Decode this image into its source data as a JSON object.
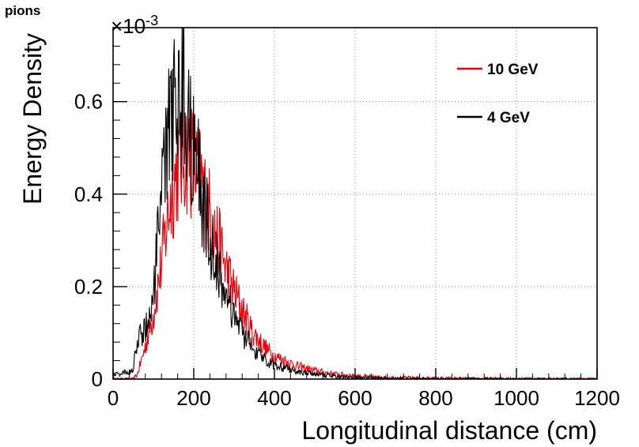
{
  "corner_label": "pions",
  "chart_data": {
    "type": "line",
    "title": "",
    "xlabel": "Longitudinal distance (cm)",
    "ylabel": "Energy Density",
    "y_exponent_label": "×10",
    "y_exponent_power": "-3",
    "xlim": [
      0,
      1200
    ],
    "ylim": [
      0,
      0.76
    ],
    "x_ticks": [
      0,
      200,
      400,
      600,
      800,
      1000,
      1200
    ],
    "x_tick_labels": [
      "0",
      "200",
      "400",
      "600",
      "800",
      "1000",
      "1200"
    ],
    "y_ticks": [
      0,
      0.2,
      0.4,
      0.6
    ],
    "y_tick_labels": [
      "0",
      "0.2",
      "0.4",
      "0.6"
    ],
    "grid": true,
    "legend_position": "top-right",
    "series": [
      {
        "name": "10 GeV",
        "color": "#e8000b",
        "x": [
          0,
          50,
          60,
          80,
          100,
          120,
          140,
          160,
          180,
          200,
          220,
          240,
          260,
          280,
          300,
          320,
          340,
          360,
          380,
          400,
          450,
          500,
          550,
          600,
          650,
          700,
          800,
          900,
          1000,
          1100,
          1200
        ],
        "y": [
          0,
          0,
          0.01,
          0.07,
          0.14,
          0.25,
          0.38,
          0.46,
          0.49,
          0.47,
          0.42,
          0.36,
          0.3,
          0.24,
          0.19,
          0.15,
          0.11,
          0.085,
          0.065,
          0.05,
          0.03,
          0.018,
          0.011,
          0.007,
          0.004,
          0.003,
          0.0015,
          0.0008,
          0.0004,
          0.0002,
          0.0001
        ]
      },
      {
        "name": "4 GeV",
        "color": "#000000",
        "x": [
          0,
          40,
          50,
          60,
          80,
          100,
          120,
          140,
          160,
          180,
          200,
          220,
          240,
          260,
          280,
          300,
          320,
          340,
          360,
          380,
          400,
          450,
          500,
          550,
          600,
          650,
          700,
          800,
          900,
          1000,
          1100,
          1200
        ],
        "y": [
          0.01,
          0.015,
          0.02,
          0.085,
          0.11,
          0.17,
          0.4,
          0.55,
          0.64,
          0.6,
          0.5,
          0.4,
          0.31,
          0.24,
          0.18,
          0.14,
          0.1,
          0.075,
          0.055,
          0.04,
          0.032,
          0.018,
          0.01,
          0.006,
          0.003,
          0.002,
          0.001,
          0.0005,
          0.0002,
          0.0001,
          0,
          0
        ]
      }
    ]
  }
}
